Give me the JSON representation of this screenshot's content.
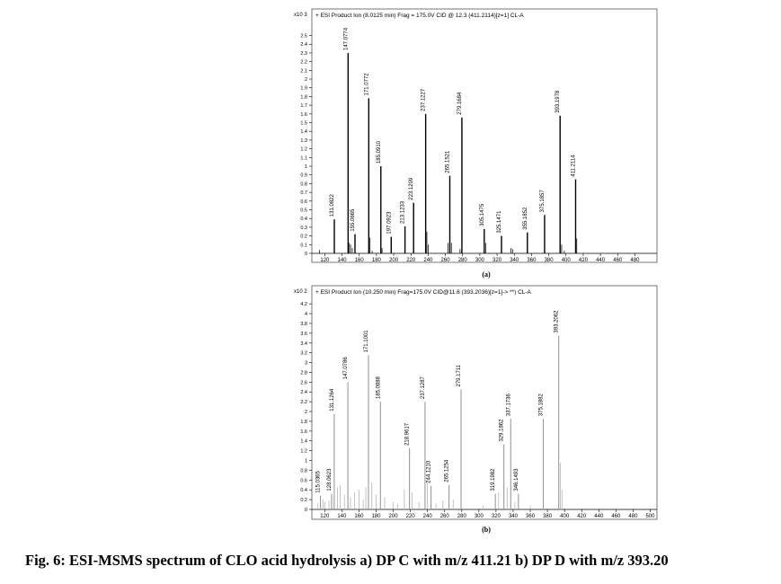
{
  "caption": "Fig. 6: ESI-MSMS spectrum of CLO acid hydrolysis a) DP C with m/z 411.21 b) DP D with m/z 393.20",
  "chart_data": [
    {
      "type": "bar",
      "panel_label": "(a)",
      "header": "+ ESI Product Ion (8.0125 min) Frag = 175.0V CID @ 12.3 (411.2114)[z=1] CL-A",
      "y_multiplier": "x10 3",
      "xlim": [
        105,
        490
      ],
      "ylim": [
        0,
        2.65
      ],
      "x_ticks": [
        "120",
        "140",
        "160",
        "180",
        "200",
        "220",
        "240",
        "260",
        "280",
        "300",
        "320",
        "340",
        "360",
        "380",
        "400",
        "420",
        "440",
        "460",
        "480"
      ],
      "y_ticks": [
        "0",
        "0.1",
        "0.2",
        "0.3",
        "0.4",
        "0.5",
        "0.6",
        "0.7",
        "0.8",
        "0.9",
        "1",
        "1.1",
        "1.2",
        "1.3",
        "1.4",
        "1.5",
        "1.6",
        "1.7",
        "1.8",
        "1.9",
        "2",
        "2.1",
        "2.2",
        "2.3",
        "2.4",
        "2.5"
      ],
      "peaks": [
        {
          "mz": 131.0822,
          "intensity": 0.39,
          "label": "131.0822"
        },
        {
          "mz": 147.0774,
          "intensity": 2.3,
          "label": "147.0774"
        },
        {
          "mz": 155.0665,
          "intensity": 0.22,
          "label": "155.0665"
        },
        {
          "mz": 171.0772,
          "intensity": 1.78,
          "label": "171.0772"
        },
        {
          "mz": 185.091,
          "intensity": 1.0,
          "label": "185.0910"
        },
        {
          "mz": 197.0923,
          "intensity": 0.19,
          "label": "197.0923"
        },
        {
          "mz": 213.1233,
          "intensity": 0.31,
          "label": "213.1233"
        },
        {
          "mz": 223.1209,
          "intensity": 0.58,
          "label": "223.1209"
        },
        {
          "mz": 237.1227,
          "intensity": 1.6,
          "label": "237.1227"
        },
        {
          "mz": 265.1521,
          "intensity": 0.89,
          "label": "265.1521"
        },
        {
          "mz": 279.1684,
          "intensity": 1.56,
          "label": "279.1684"
        },
        {
          "mz": 305.1475,
          "intensity": 0.28,
          "label": "305.1475"
        },
        {
          "mz": 325.1471,
          "intensity": 0.2,
          "label": "325.1471"
        },
        {
          "mz": 355.1852,
          "intensity": 0.24,
          "label": "355.1852"
        },
        {
          "mz": 375.1857,
          "intensity": 0.44,
          "label": "375.1857"
        },
        {
          "mz": 393.1978,
          "intensity": 1.58,
          "label": "393.1978"
        },
        {
          "mz": 411.2114,
          "intensity": 0.85,
          "label": "411.2114"
        }
      ],
      "minor_peaks": [
        {
          "mz": 114,
          "intensity": 0.04
        },
        {
          "mz": 148.5,
          "intensity": 0.12
        },
        {
          "mz": 150,
          "intensity": 0.1
        },
        {
          "mz": 152,
          "intensity": 0.06
        },
        {
          "mz": 172.5,
          "intensity": 0.18
        },
        {
          "mz": 175,
          "intensity": 0.03
        },
        {
          "mz": 186.5,
          "intensity": 0.06
        },
        {
          "mz": 238.5,
          "intensity": 0.25
        },
        {
          "mz": 240,
          "intensity": 0.1
        },
        {
          "mz": 263,
          "intensity": 0.12
        },
        {
          "mz": 267,
          "intensity": 0.12
        },
        {
          "mz": 277,
          "intensity": 0.05
        },
        {
          "mz": 307,
          "intensity": 0.12
        },
        {
          "mz": 336,
          "intensity": 0.06
        },
        {
          "mz": 338,
          "intensity": 0.05
        },
        {
          "mz": 395,
          "intensity": 0.1
        },
        {
          "mz": 398,
          "intensity": 0.03
        },
        {
          "mz": 412.5,
          "intensity": 0.17
        }
      ]
    },
    {
      "type": "bar",
      "panel_label": "(b)",
      "header": "+ ESI Product Ion (10.250 min) Frag=175.0V CID@11.6 (393.2036)[z=1]-> **) CL-A",
      "y_multiplier": "x10 2",
      "xlim": [
        105,
        510
      ],
      "ylim": [
        0,
        4.35
      ],
      "x_ticks": [
        "120",
        "140",
        "160",
        "180",
        "200",
        "220",
        "240",
        "260",
        "280",
        "300",
        "320",
        "340",
        "360",
        "380",
        "400",
        "420",
        "440",
        "460",
        "480",
        "500"
      ],
      "y_ticks": [
        "0",
        "0.2",
        "0.4",
        "0.6",
        "0.8",
        "1",
        "1.2",
        "1.4",
        "1.6",
        "1.8",
        "2",
        "2.2",
        "2.4",
        "2.6",
        "2.8",
        "3",
        "3.2",
        "3.4",
        "3.6",
        "3.8",
        "4",
        "4.2"
      ],
      "peaks": [
        {
          "mz": 115.0365,
          "intensity": 0.28,
          "label": "115.0365"
        },
        {
          "mz": 128.0623,
          "intensity": 0.32,
          "label": "128.0623"
        },
        {
          "mz": 131.1264,
          "intensity": 1.95,
          "label": "131.1264"
        },
        {
          "mz": 147.0786,
          "intensity": 2.6,
          "label": "147.0786"
        },
        {
          "mz": 171.1001,
          "intensity": 3.15,
          "label": "171.1001"
        },
        {
          "mz": 185.0888,
          "intensity": 2.2,
          "label": "185.0888"
        },
        {
          "mz": 218.9617,
          "intensity": 1.25,
          "label": "218.9617"
        },
        {
          "mz": 237.1287,
          "intensity": 2.2,
          "label": "237.1287"
        },
        {
          "mz": 244.121,
          "intensity": 0.48,
          "label": "244.1210"
        },
        {
          "mz": 265.1254,
          "intensity": 0.5,
          "label": "265.1254"
        },
        {
          "mz": 279.1711,
          "intensity": 2.45,
          "label": "279.1711"
        },
        {
          "mz": 319.1982,
          "intensity": 0.32,
          "label": "319.1982"
        },
        {
          "mz": 329.1862,
          "intensity": 1.33,
          "label": "329.1862"
        },
        {
          "mz": 337.1736,
          "intensity": 1.85,
          "label": "337.1736"
        },
        {
          "mz": 346.1493,
          "intensity": 0.32,
          "label": "346.1493"
        },
        {
          "mz": 375.1882,
          "intensity": 1.85,
          "label": "375.1882"
        },
        {
          "mz": 393.2062,
          "intensity": 3.55,
          "label": "393.2062"
        }
      ],
      "minor_peaks": [
        {
          "mz": 112,
          "intensity": 0.12
        },
        {
          "mz": 118,
          "intensity": 0.2
        },
        {
          "mz": 120,
          "intensity": 0.15
        },
        {
          "mz": 125,
          "intensity": 0.18
        },
        {
          "mz": 135,
          "intensity": 0.45
        },
        {
          "mz": 138,
          "intensity": 0.5
        },
        {
          "mz": 143,
          "intensity": 0.3
        },
        {
          "mz": 150,
          "intensity": 0.25
        },
        {
          "mz": 155,
          "intensity": 0.35
        },
        {
          "mz": 160,
          "intensity": 0.4
        },
        {
          "mz": 165,
          "intensity": 0.2
        },
        {
          "mz": 168,
          "intensity": 0.45
        },
        {
          "mz": 175,
          "intensity": 0.55
        },
        {
          "mz": 180,
          "intensity": 0.3
        },
        {
          "mz": 190,
          "intensity": 0.25
        },
        {
          "mz": 200,
          "intensity": 0.15
        },
        {
          "mz": 205,
          "intensity": 0.12
        },
        {
          "mz": 213,
          "intensity": 0.4
        },
        {
          "mz": 222,
          "intensity": 0.35
        },
        {
          "mz": 230,
          "intensity": 0.15
        },
        {
          "mz": 240,
          "intensity": 0.55
        },
        {
          "mz": 250,
          "intensity": 0.12
        },
        {
          "mz": 258,
          "intensity": 0.18
        },
        {
          "mz": 270,
          "intensity": 0.2
        },
        {
          "mz": 305,
          "intensity": 0.08
        },
        {
          "mz": 323,
          "intensity": 0.35
        },
        {
          "mz": 333,
          "intensity": 0.45
        },
        {
          "mz": 342,
          "intensity": 0.15
        },
        {
          "mz": 360,
          "intensity": 0.08
        },
        {
          "mz": 395,
          "intensity": 0.95
        },
        {
          "mz": 397,
          "intensity": 0.4
        }
      ]
    }
  ]
}
